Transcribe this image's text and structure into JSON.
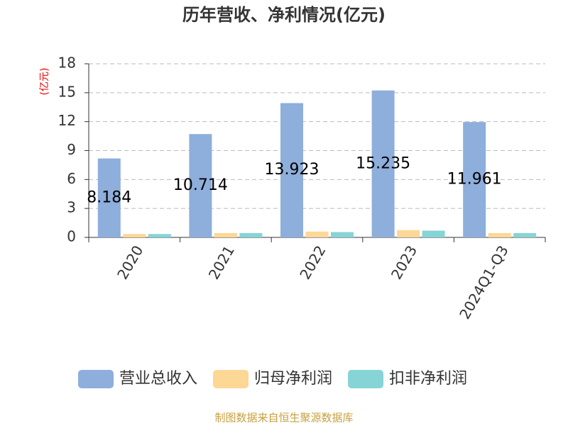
{
  "chart_data": {
    "type": "bar",
    "title": "历年营收、净利情况(亿元)",
    "y_label": "(亿元)",
    "categories": [
      "2020",
      "2021",
      "2022",
      "2023",
      "2024Q1-Q3"
    ],
    "series": [
      {
        "name": "营业总收入",
        "color": "#8eaedb",
        "values": [
          8.184,
          10.714,
          13.923,
          15.235,
          11.961
        ],
        "show_labels": true
      },
      {
        "name": "归母净利润",
        "color": "#fdd796",
        "values": [
          0.35,
          0.45,
          0.6,
          0.75,
          0.45
        ]
      },
      {
        "name": "扣非净利润",
        "color": "#86d4d6",
        "values": [
          0.35,
          0.45,
          0.55,
          0.7,
          0.45
        ]
      }
    ],
    "ylim": [
      0,
      18
    ],
    "yticks": [
      0,
      3,
      6,
      9,
      12,
      15,
      18
    ],
    "grid": true,
    "source": "制图数据来自恒生聚源数据库"
  }
}
